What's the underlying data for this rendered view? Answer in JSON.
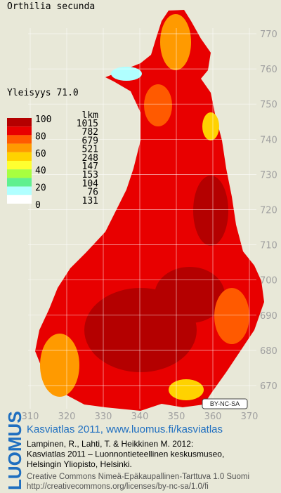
{
  "title": "Orthilia secunda",
  "frequency": "Yleisyys 71.0",
  "legend": {
    "count_header": "lkm",
    "scale_labels": [
      "100",
      "80",
      "60",
      "40",
      "20",
      "0"
    ],
    "classes": [
      {
        "color": "#b40000",
        "count": "1015"
      },
      {
        "color": "#e80000",
        "count": "782"
      },
      {
        "color": "#ff5a00",
        "count": "679"
      },
      {
        "color": "#ff9a00",
        "count": "521"
      },
      {
        "color": "#ffd200",
        "count": "248"
      },
      {
        "color": "#ffff30",
        "count": "147"
      },
      {
        "color": "#a8ff40",
        "count": "153"
      },
      {
        "color": "#60f090",
        "count": "104"
      },
      {
        "color": "#b0ffff",
        "count": "76"
      },
      {
        "color": "#ffffff",
        "count": "131"
      }
    ]
  },
  "grid": {
    "x_labels": [
      "310",
      "320",
      "330",
      "340",
      "350",
      "360",
      "370"
    ],
    "y_labels": [
      "770",
      "760",
      "750",
      "740",
      "730",
      "720",
      "710",
      "700",
      "690",
      "680",
      "670"
    ]
  },
  "license_badge": "BY-NC-SA",
  "footer": {
    "logo": "LUOMUS",
    "headline": "Kasviatlas 2011, www.luomus.fi/kasviatlas",
    "citation": [
      "Lampinen, R., Lahti, T. & Heikkinen M. 2012:",
      "Kasviatlas 2011 – Luonnontieteellinen keskusmuseo,",
      "Helsingin Yliopisto, Helsinki."
    ],
    "license": [
      "Creative Commons Nimeä-Epäkaupallinen-Tarttuva 1.0 Suomi",
      "http://creativecommons.org/licenses/by-nc-sa/1.0/fi"
    ]
  }
}
